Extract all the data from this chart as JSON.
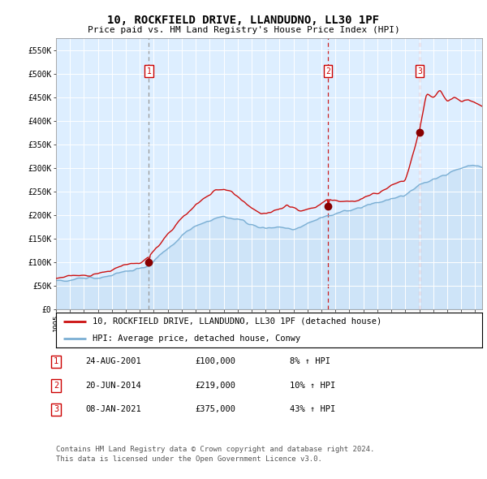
{
  "title1": "10, ROCKFIELD DRIVE, LLANDUDNO, LL30 1PF",
  "title2": "Price paid vs. HM Land Registry's House Price Index (HPI)",
  "ylabel_ticks": [
    "£0",
    "£50K",
    "£100K",
    "£150K",
    "£200K",
    "£250K",
    "£300K",
    "£350K",
    "£400K",
    "£450K",
    "£500K",
    "£550K"
  ],
  "ytick_vals": [
    0,
    50000,
    100000,
    150000,
    200000,
    250000,
    300000,
    350000,
    400000,
    450000,
    500000,
    550000
  ],
  "ylim": [
    0,
    575000
  ],
  "xlim_start": 1995.0,
  "xlim_end": 2025.5,
  "sale1_date": 2001.644,
  "sale1_price": 100000,
  "sale2_date": 2014.469,
  "sale2_price": 219000,
  "sale3_date": 2021.025,
  "sale3_price": 375000,
  "hpi_line_color": "#7bafd4",
  "price_line_color": "#cc1111",
  "sale_marker_color": "#880000",
  "vline1_color": "#aaaaaa",
  "vline2_color": "#cc2222",
  "vline3_color": "#cc2222",
  "bg_color": "#ddeeff",
  "legend_label_price": "10, ROCKFIELD DRIVE, LLANDUDNO, LL30 1PF (detached house)",
  "legend_label_hpi": "HPI: Average price, detached house, Conwy",
  "footnote": "Contains HM Land Registry data © Crown copyright and database right 2024.\nThis data is licensed under the Open Government Licence v3.0.",
  "table_rows": [
    {
      "num": "1",
      "date": "24-AUG-2001",
      "price": "£100,000",
      "hpi": "8% ↑ HPI"
    },
    {
      "num": "2",
      "date": "20-JUN-2014",
      "price": "£219,000",
      "hpi": "10% ↑ HPI"
    },
    {
      "num": "3",
      "date": "08-JAN-2021",
      "price": "£375,000",
      "hpi": "43% ↑ HPI"
    }
  ]
}
